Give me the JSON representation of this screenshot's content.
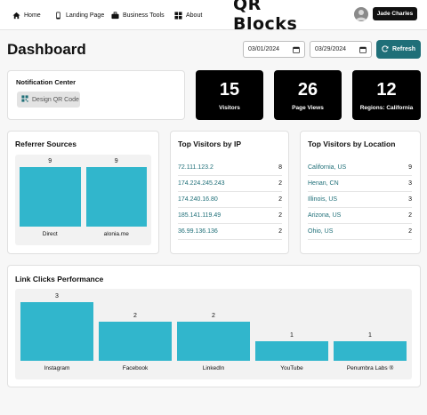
{
  "nav": {
    "items": [
      {
        "label": "Home",
        "icon": "home-icon"
      },
      {
        "label": "Landing Page",
        "icon": "phone-icon"
      },
      {
        "label": "Business Tools",
        "icon": "briefcase-icon"
      },
      {
        "label": "About",
        "icon": "grid-icon"
      }
    ],
    "logo": "QR Blocks",
    "user": "Jade Charles"
  },
  "header": {
    "title": "Dashboard",
    "date_from": "03/01/2024",
    "date_to": "03/29/2024",
    "refresh_label": "Refresh"
  },
  "notification": {
    "title": "Notification Center",
    "button_label": "Design QR Code"
  },
  "stats": [
    {
      "value": "15",
      "label": "Visitors"
    },
    {
      "value": "26",
      "label": "Page Views"
    },
    {
      "value": "12",
      "label": "Regions: California"
    }
  ],
  "referrer": {
    "title": "Referrer Sources",
    "chart_data": {
      "type": "bar",
      "categories": [
        "Direct",
        "alonia.me"
      ],
      "values": [
        9,
        9
      ],
      "ylim": [
        0,
        9
      ]
    }
  },
  "visitors_ip": {
    "title": "Top Visitors by IP",
    "rows": [
      {
        "key": "72.111.123.2",
        "value": "8"
      },
      {
        "key": "174.224.245.243",
        "value": "2"
      },
      {
        "key": "174.240.16.80",
        "value": "2"
      },
      {
        "key": "185.141.119.49",
        "value": "2"
      },
      {
        "key": "36.99.136.136",
        "value": "2"
      }
    ]
  },
  "visitors_loc": {
    "title": "Top Visitors by Location",
    "rows": [
      {
        "key": "California, US",
        "value": "9"
      },
      {
        "key": "Henan, CN",
        "value": "3"
      },
      {
        "key": "Illinois, US",
        "value": "3"
      },
      {
        "key": "Arizona, US",
        "value": "2"
      },
      {
        "key": "Ohio, US",
        "value": "2"
      }
    ]
  },
  "link_clicks": {
    "title": "Link Clicks Performance",
    "chart_data": {
      "type": "bar",
      "categories": [
        "Instagram",
        "Facebook",
        "LinkedIn",
        "YouTube",
        "Penumbra Labs ®"
      ],
      "values": [
        3,
        2,
        2,
        1,
        1
      ],
      "ylim": [
        0,
        3
      ]
    }
  },
  "colors": {
    "accent": "#1f6f78",
    "bar": "#31b6cc",
    "stat_bg": "#000000"
  }
}
